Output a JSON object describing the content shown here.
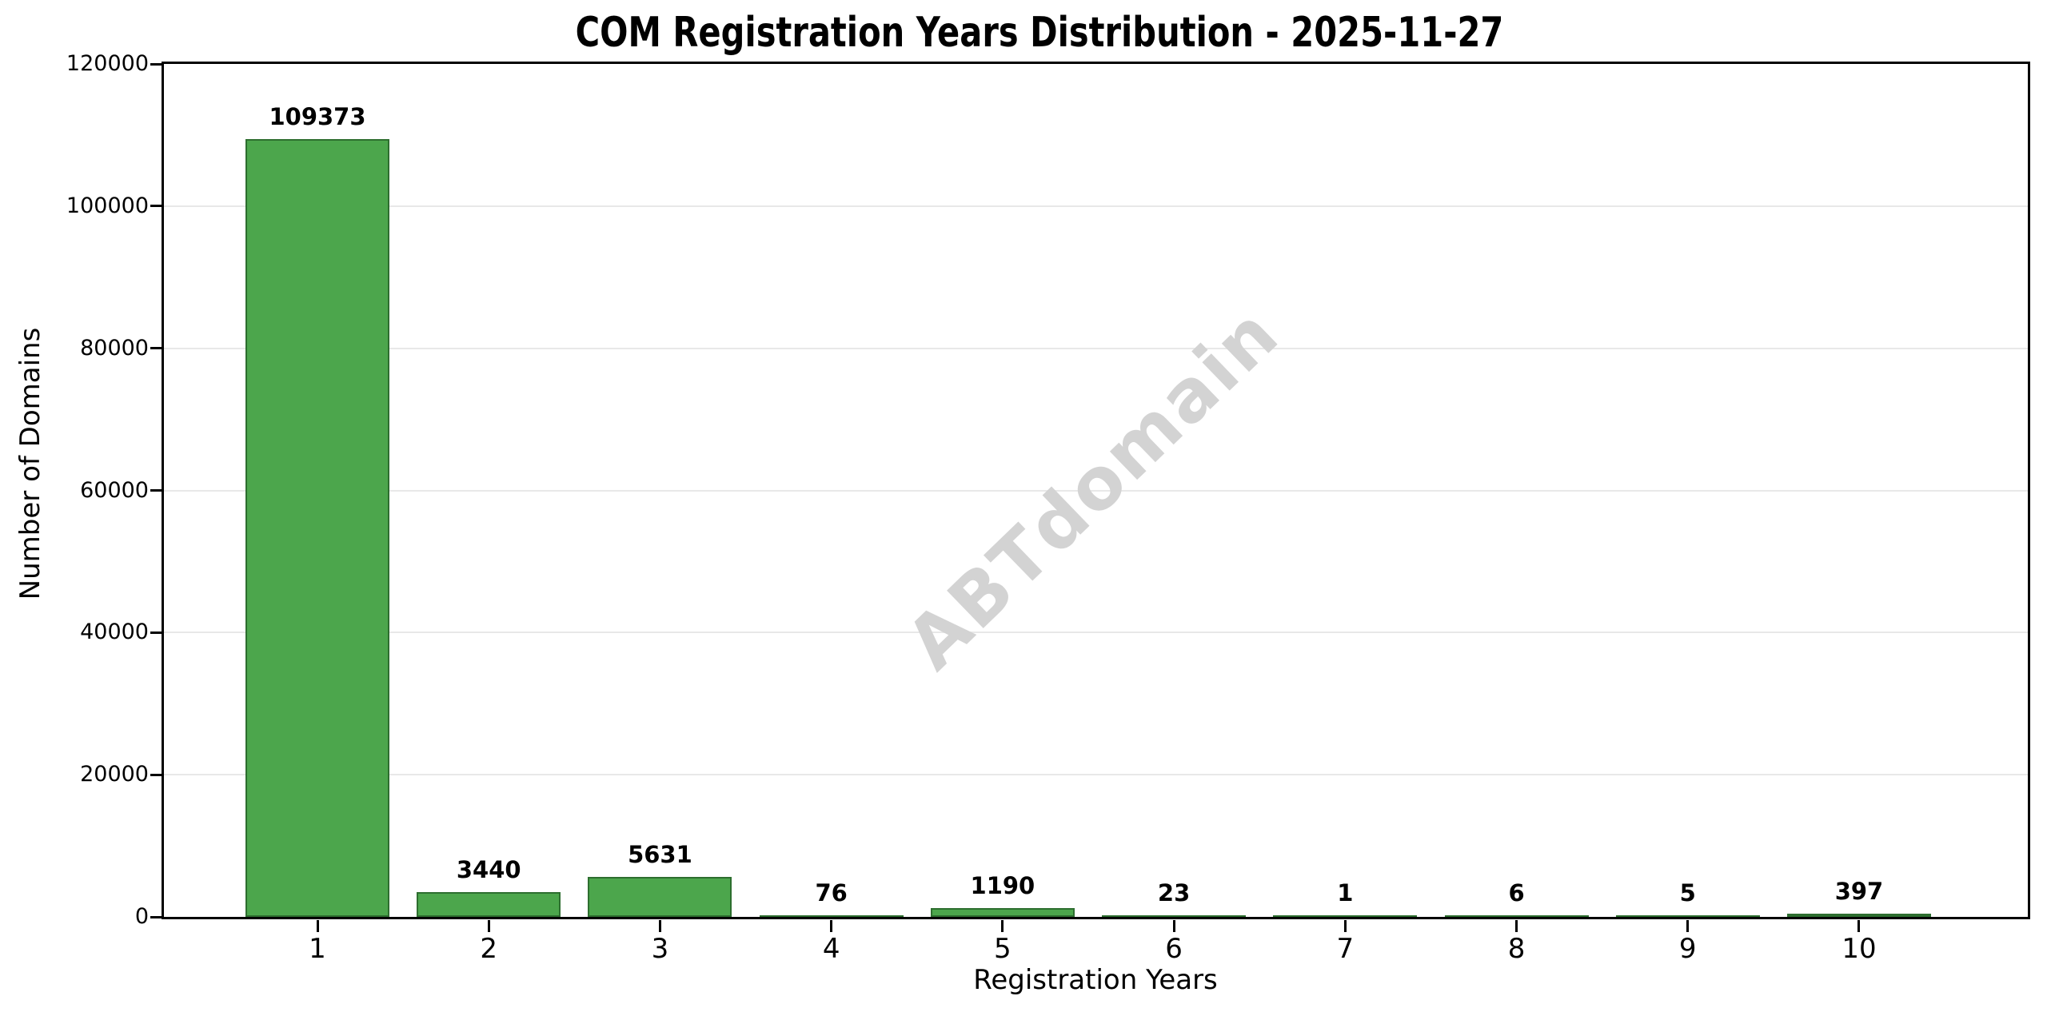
{
  "chart_data": {
    "type": "bar",
    "title": "COM Registration Years Distribution - 2025-11-27",
    "xlabel": "Registration Years",
    "ylabel": "Number of Domains",
    "watermark": "ABTdomain",
    "categories": [
      "1",
      "2",
      "3",
      "4",
      "5",
      "6",
      "7",
      "8",
      "9",
      "10"
    ],
    "values": [
      109373,
      3440,
      5631,
      76,
      1190,
      23,
      1,
      6,
      5,
      397
    ],
    "ylim": [
      0,
      120000
    ],
    "yticks": [
      0,
      20000,
      40000,
      60000,
      80000,
      100000,
      120000
    ],
    "grid": "horizontal",
    "legend": "none",
    "bar_color": "#4CA64C",
    "bar_edge_color": "#2D6E2F",
    "grid_color": "#E8E8E8",
    "watermark_color": "#D3D3D3",
    "axis_color": "#000000"
  }
}
